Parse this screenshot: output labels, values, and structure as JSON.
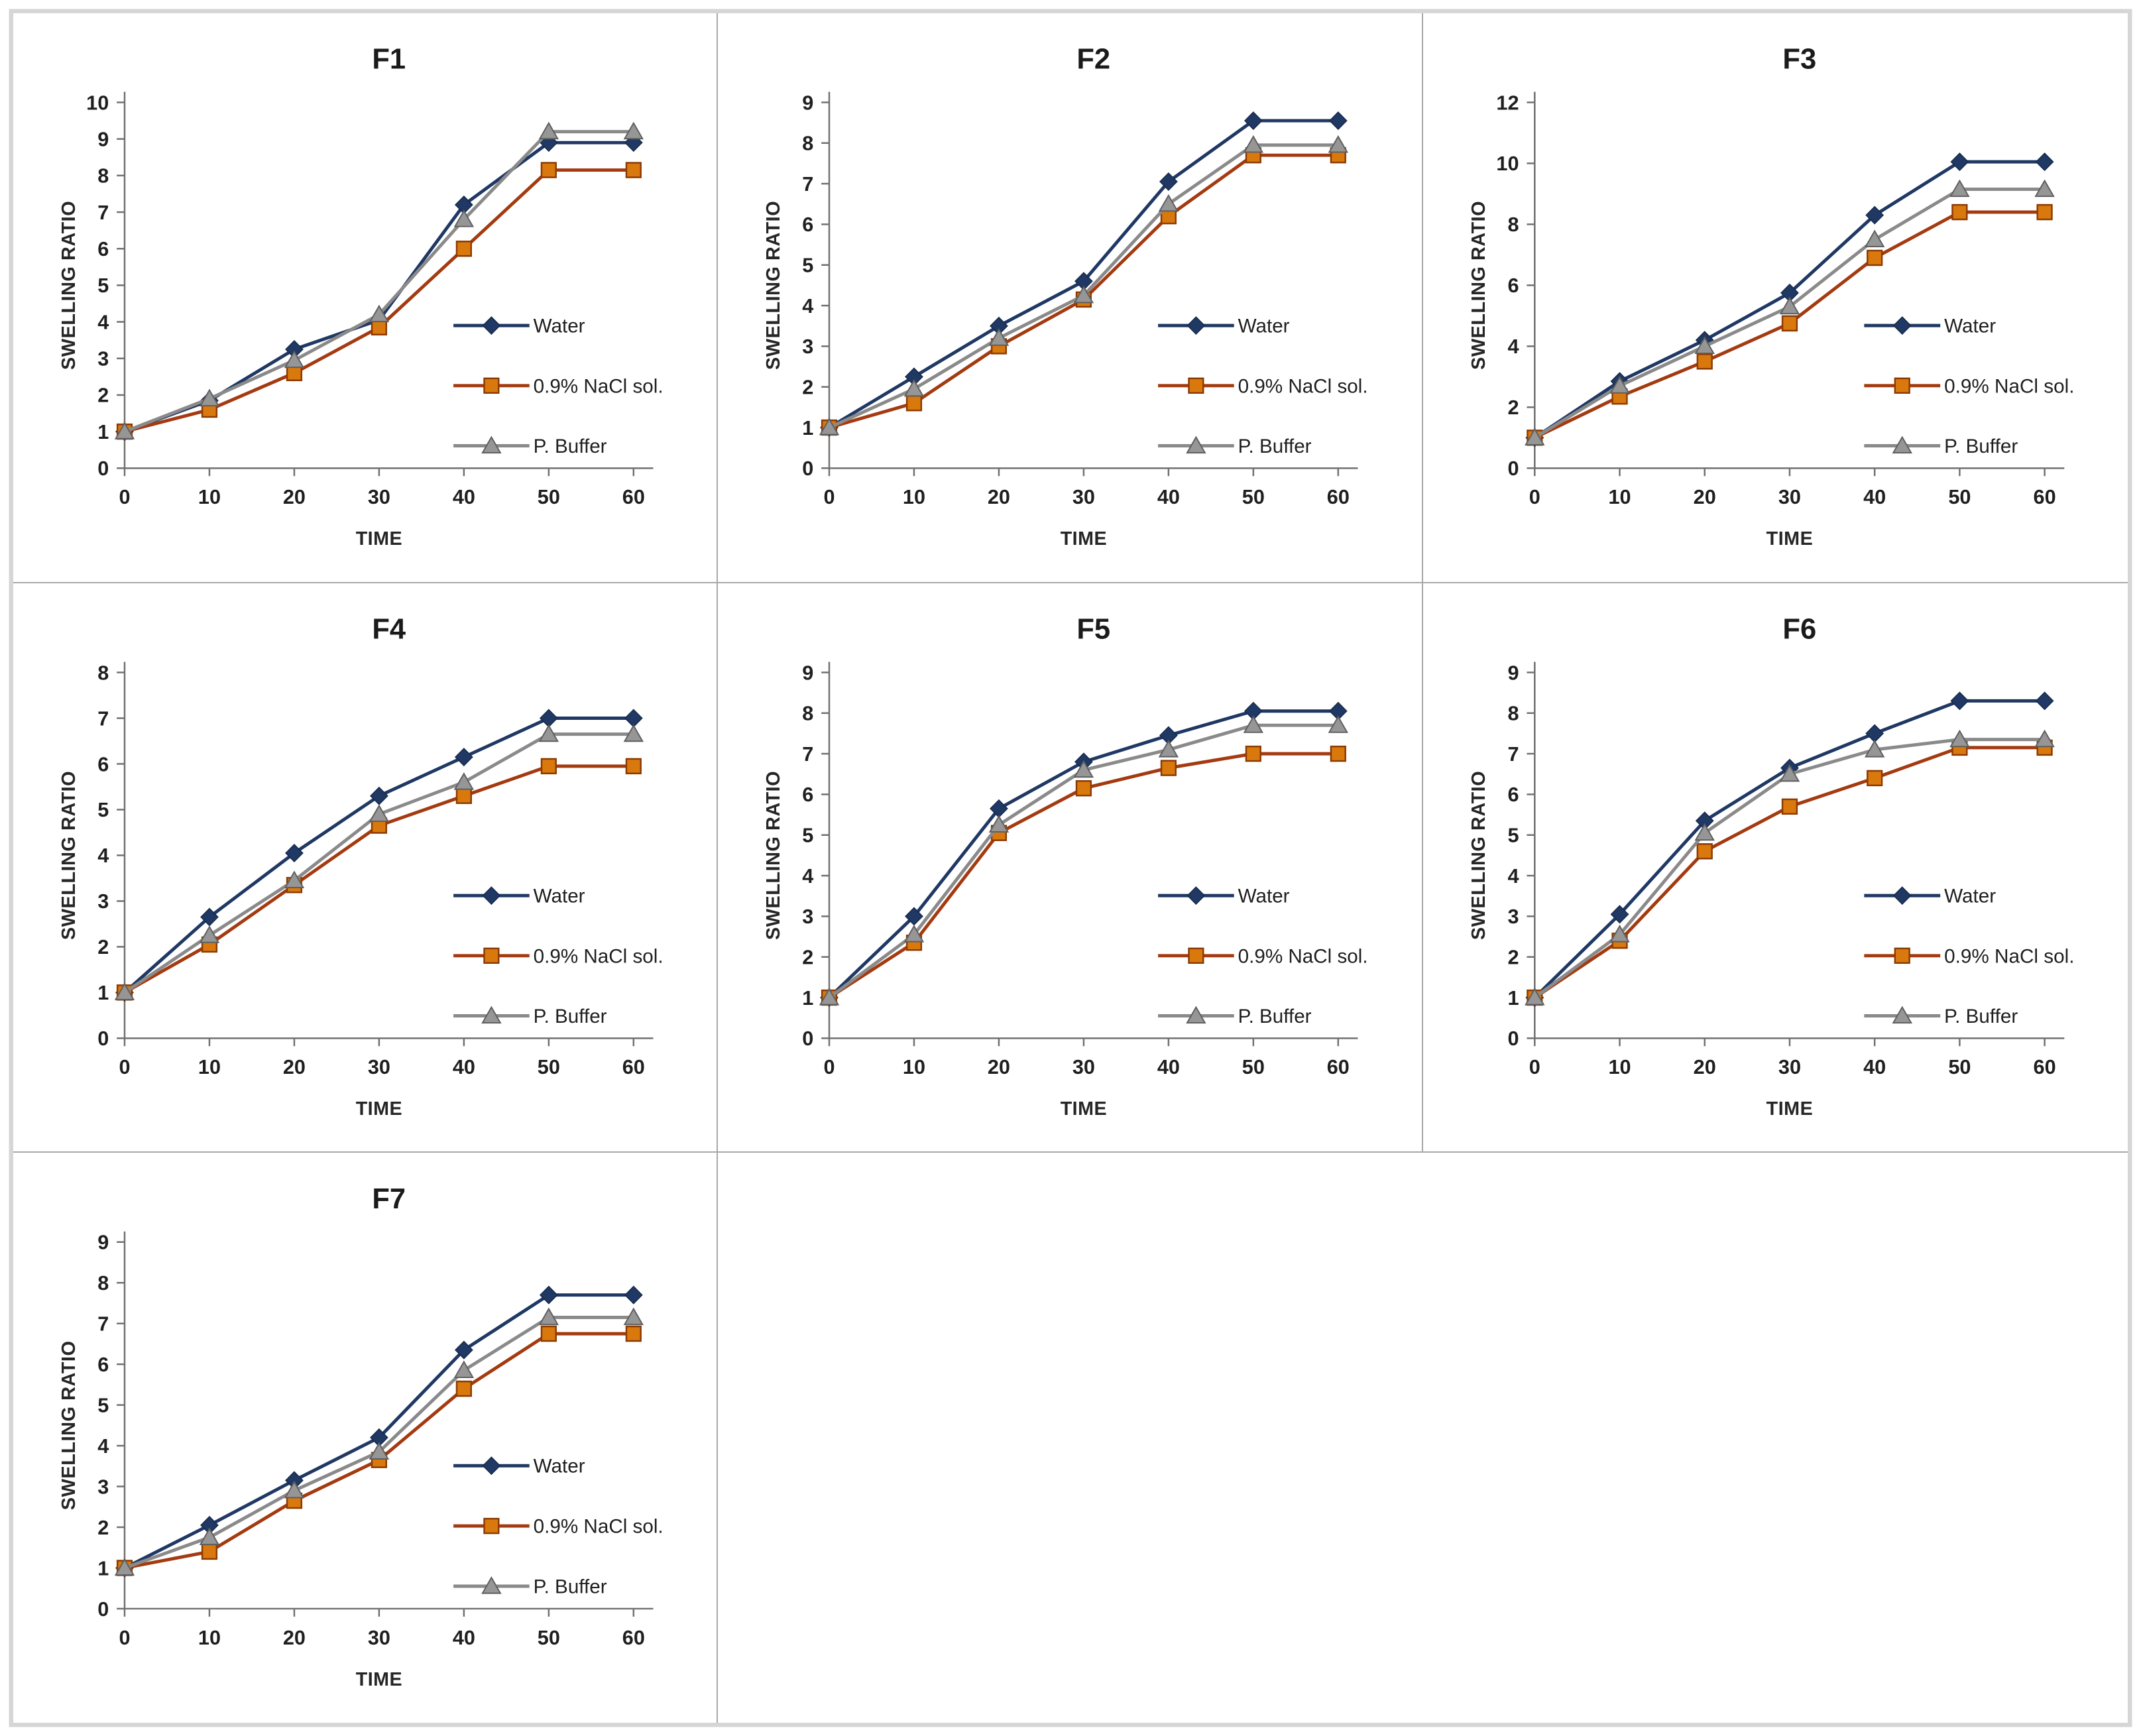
{
  "figure": {
    "background": "#ffffff",
    "frame_border_color": "#d6d6d6",
    "divider_color": "#a8a8a8",
    "axis_line_color": "#707070",
    "tick_label_color": "#1f1f1f",
    "title_color": "#1a1a1a",
    "axis_title_color": "#262626"
  },
  "series_styles": [
    {
      "name": "Water",
      "marker": "diamond",
      "line_color": "#1f3864",
      "marker_fill": "#1f3864",
      "marker_stroke": "#16294a"
    },
    {
      "name": "0.9% NaCl sol.",
      "marker": "square",
      "line_color": "#a43a10",
      "marker_fill": "#d9790d",
      "marker_stroke": "#8c3a03"
    },
    {
      "name": "P. Buffer",
      "marker": "triangle",
      "line_color": "#8a8a8a",
      "marker_fill": "#969696",
      "marker_stroke": "#5f5f5f"
    }
  ],
  "chart_data": [
    {
      "type": "line",
      "title": "F1",
      "xlabel": "TIME",
      "ylabel": "SWELLING RATIO",
      "x": [
        0,
        10,
        20,
        30,
        40,
        50,
        60
      ],
      "ylim": [
        0,
        10
      ],
      "ystep": 1,
      "grid": false,
      "legend_position": "middle-right",
      "series": [
        {
          "name": "Water",
          "values": [
            1,
            1.85,
            3.25,
            4.05,
            7.2,
            8.9,
            8.9
          ]
        },
        {
          "name": "0.9% NaCl sol.",
          "values": [
            1,
            1.6,
            2.6,
            3.85,
            6.0,
            8.15,
            8.15
          ]
        },
        {
          "name": "P. Buffer",
          "values": [
            1,
            1.9,
            2.95,
            4.2,
            6.8,
            9.2,
            9.2
          ]
        }
      ]
    },
    {
      "type": "line",
      "title": "F2",
      "xlabel": "TIME",
      "ylabel": "SWELLING RATIO",
      "x": [
        0,
        10,
        20,
        30,
        40,
        50,
        60
      ],
      "ylim": [
        0,
        9
      ],
      "ystep": 1,
      "grid": false,
      "legend_position": "middle-right",
      "series": [
        {
          "name": "Water",
          "values": [
            1,
            2.25,
            3.5,
            4.6,
            7.05,
            8.55,
            8.55
          ]
        },
        {
          "name": "0.9% NaCl sol.",
          "values": [
            1,
            1.6,
            3.0,
            4.15,
            6.2,
            7.7,
            7.7
          ]
        },
        {
          "name": "P. Buffer",
          "values": [
            1,
            1.95,
            3.2,
            4.25,
            6.5,
            7.95,
            7.95
          ]
        }
      ]
    },
    {
      "type": "line",
      "title": "F3",
      "xlabel": "TIME",
      "ylabel": "SWELLING RATIO",
      "x": [
        0,
        10,
        20,
        30,
        40,
        50,
        60
      ],
      "ylim": [
        0,
        12
      ],
      "ystep": 2,
      "grid": false,
      "legend_position": "middle-right",
      "series": [
        {
          "name": "Water",
          "values": [
            1,
            2.85,
            4.2,
            5.75,
            8.3,
            10.05,
            10.05
          ]
        },
        {
          "name": "0.9% NaCl sol.",
          "values": [
            1,
            2.35,
            3.5,
            4.75,
            6.9,
            8.4,
            8.4
          ]
        },
        {
          "name": "P. Buffer",
          "values": [
            1,
            2.7,
            4.0,
            5.3,
            7.5,
            9.15,
            9.15
          ]
        }
      ]
    },
    {
      "type": "line",
      "title": "F4",
      "xlabel": "TIME",
      "ylabel": "SWELLING RATIO",
      "x": [
        0,
        10,
        20,
        30,
        40,
        50,
        60
      ],
      "ylim": [
        0,
        8
      ],
      "ystep": 1,
      "grid": false,
      "legend_position": "middle-right",
      "series": [
        {
          "name": "Water",
          "values": [
            1,
            2.65,
            4.05,
            5.3,
            6.15,
            7.0,
            7.0
          ]
        },
        {
          "name": "0.9% NaCl sol.",
          "values": [
            1,
            2.05,
            3.35,
            4.65,
            5.3,
            5.95,
            5.95
          ]
        },
        {
          "name": "P. Buffer",
          "values": [
            1,
            2.25,
            3.45,
            4.9,
            5.6,
            6.65,
            6.65
          ]
        }
      ]
    },
    {
      "type": "line",
      "title": "F5",
      "xlabel": "TIME",
      "ylabel": "SWELLING RATIO",
      "x": [
        0,
        10,
        20,
        30,
        40,
        50,
        60
      ],
      "ylim": [
        0,
        9
      ],
      "ystep": 1,
      "grid": false,
      "legend_position": "middle-right",
      "series": [
        {
          "name": "Water",
          "values": [
            1,
            3.0,
            5.65,
            6.8,
            7.45,
            8.05,
            8.05
          ]
        },
        {
          "name": "0.9% NaCl sol.",
          "values": [
            1,
            2.35,
            5.05,
            6.15,
            6.65,
            7.0,
            7.0
          ]
        },
        {
          "name": "P. Buffer",
          "values": [
            1,
            2.55,
            5.25,
            6.6,
            7.1,
            7.7,
            7.7
          ]
        }
      ]
    },
    {
      "type": "line",
      "title": "F6",
      "xlabel": "TIME",
      "ylabel": "SWELLING RATIO",
      "x": [
        0,
        10,
        20,
        30,
        40,
        50,
        60
      ],
      "ylim": [
        0,
        9
      ],
      "ystep": 1,
      "grid": false,
      "legend_position": "middle-right",
      "series": [
        {
          "name": "Water",
          "values": [
            1,
            3.05,
            5.35,
            6.65,
            7.5,
            8.3,
            8.3
          ]
        },
        {
          "name": "0.9% NaCl sol.",
          "values": [
            1,
            2.4,
            4.6,
            5.7,
            6.4,
            7.15,
            7.15
          ]
        },
        {
          "name": "P. Buffer",
          "values": [
            1,
            2.55,
            5.05,
            6.5,
            7.1,
            7.35,
            7.35
          ]
        }
      ]
    },
    {
      "type": "line",
      "title": "F7",
      "xlabel": "TIME",
      "ylabel": "SWELLING RATIO",
      "x": [
        0,
        10,
        20,
        30,
        40,
        50,
        60
      ],
      "ylim": [
        0,
        9
      ],
      "ystep": 1,
      "grid": false,
      "legend_position": "middle-right",
      "series": [
        {
          "name": "Water",
          "values": [
            1,
            2.05,
            3.15,
            4.2,
            6.35,
            7.7,
            7.7
          ]
        },
        {
          "name": "0.9% NaCl sol.",
          "values": [
            1,
            1.4,
            2.65,
            3.65,
            5.4,
            6.75,
            6.75
          ]
        },
        {
          "name": "P. Buffer",
          "values": [
            1,
            1.75,
            2.9,
            3.85,
            5.85,
            7.15,
            7.15
          ]
        }
      ]
    }
  ]
}
